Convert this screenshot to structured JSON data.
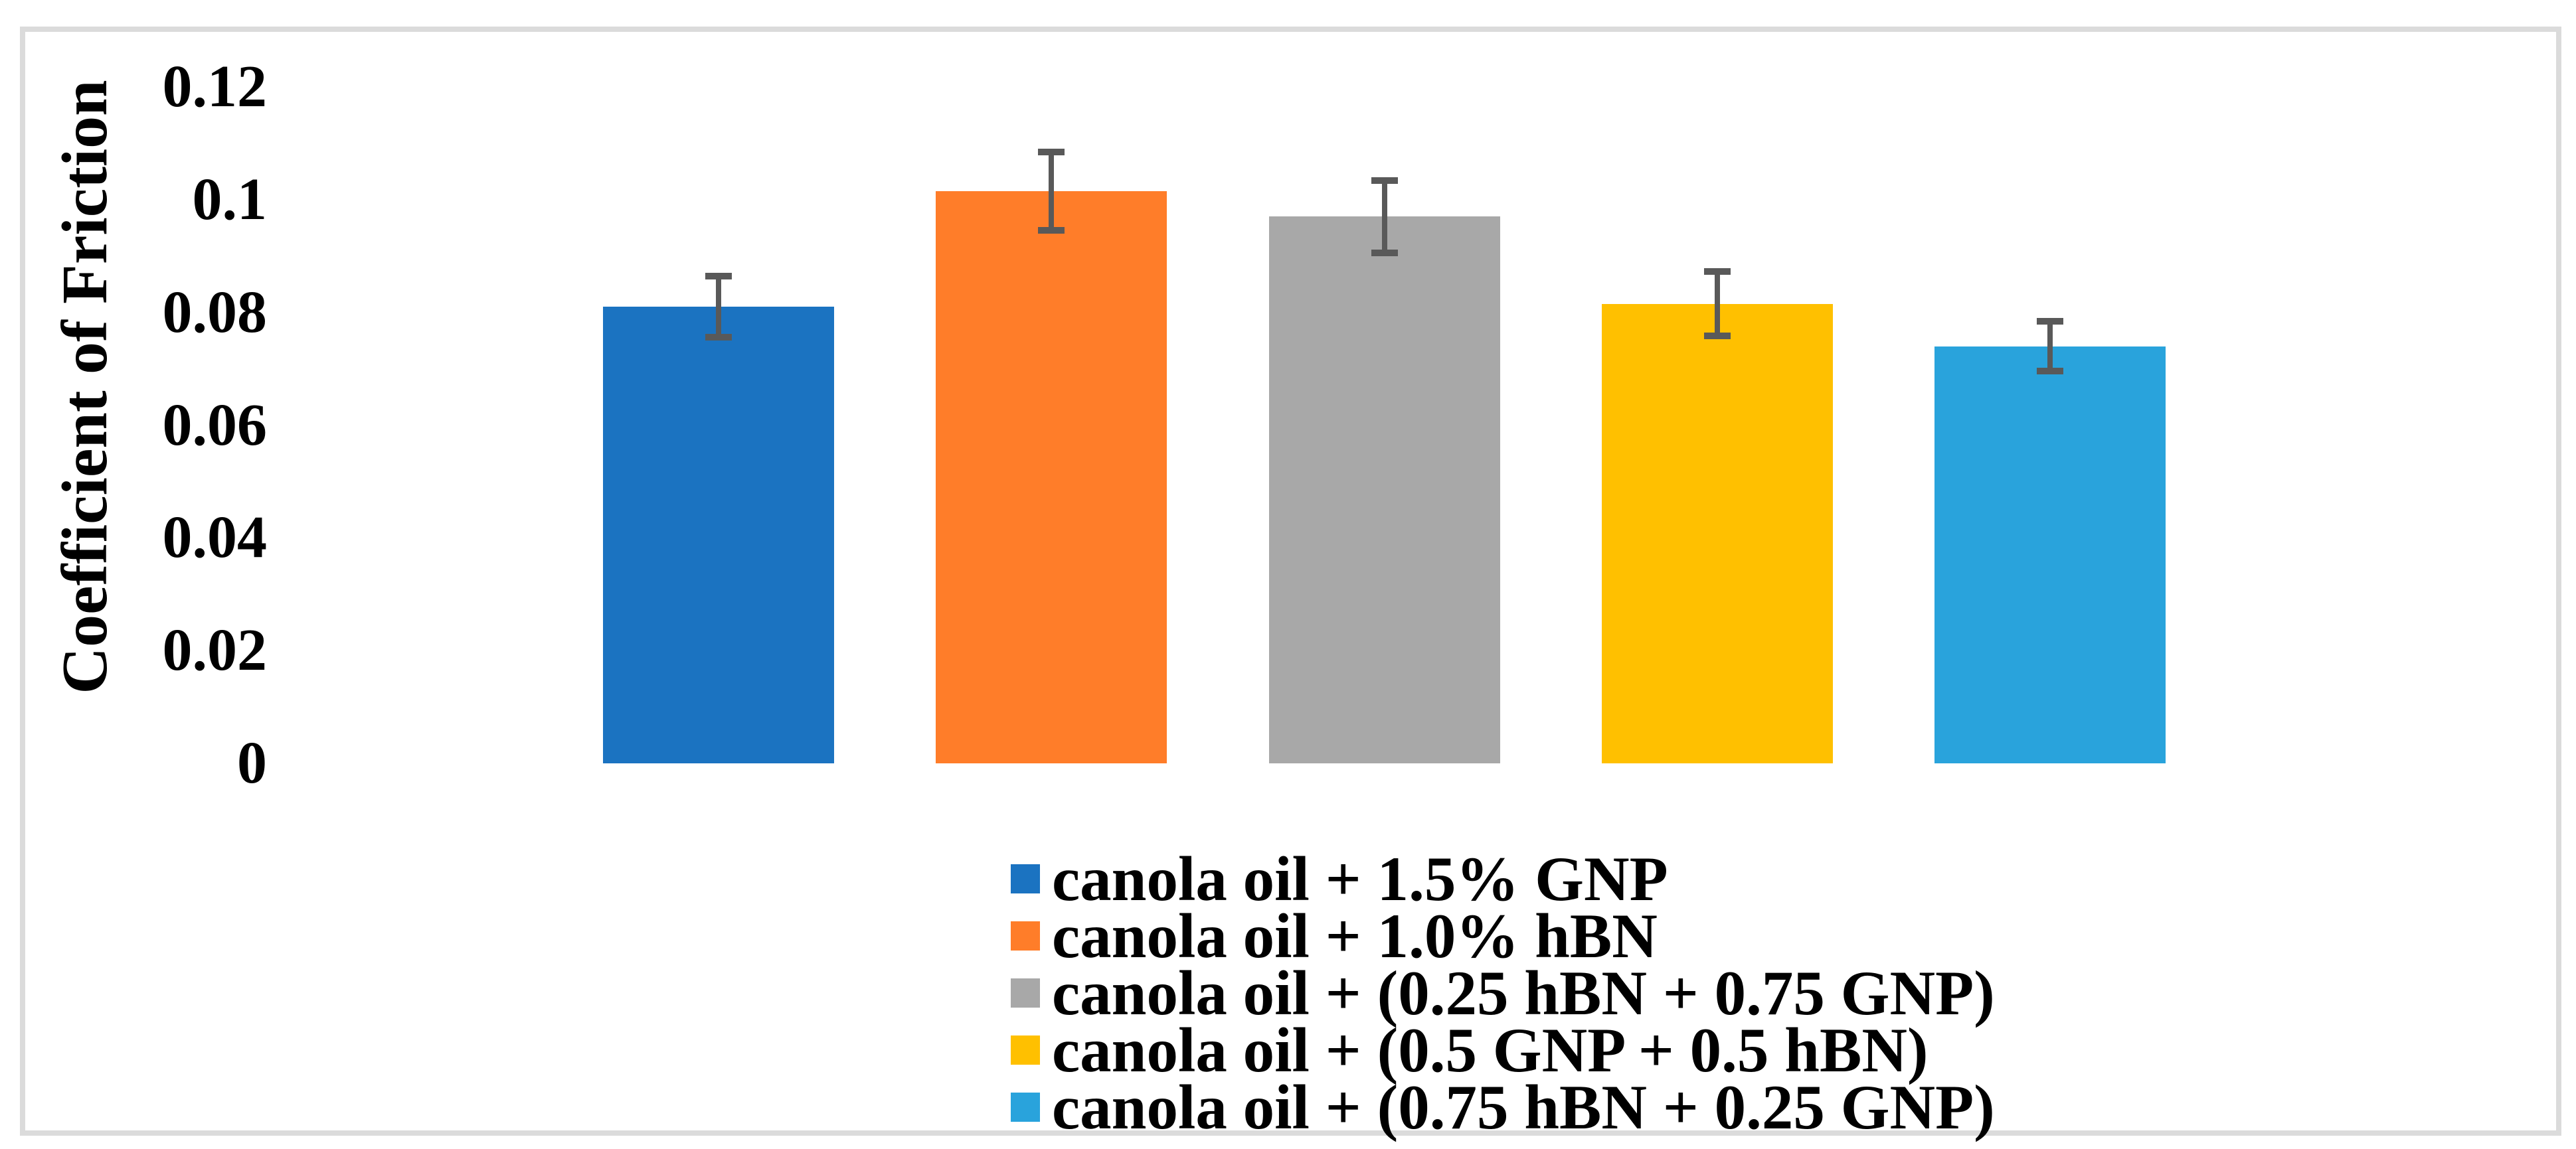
{
  "figure": {
    "background": "#FFFFFF",
    "border_color": "#DBDBDB"
  },
  "chart_data": {
    "type": "bar",
    "title": "",
    "xlabel": "",
    "ylabel": "Coefficient of Friction",
    "ylim": [
      0,
      0.12
    ],
    "grid": false,
    "legend_position": "bottom",
    "error_bars": true,
    "error_color": "#595959",
    "yticks": [
      {
        "value": 0.12,
        "label": "0.12"
      },
      {
        "value": 0.1,
        "label": "0.1"
      },
      {
        "value": 0.08,
        "label": "0.08"
      },
      {
        "value": 0.06,
        "label": "0.06"
      },
      {
        "value": 0.04,
        "label": "0.04"
      },
      {
        "value": 0.02,
        "label": "0.02"
      },
      {
        "value": 0.0,
        "label": "0"
      }
    ],
    "categories": [
      "canola oil + 1.5% GNP",
      "canola oil + 1.0% hBN",
      "canola oil + (0.25 hBN + 0.75 GNP)",
      "canola oil + (0.5 GNP + 0.5 hBN)",
      "canola oil + (0.75 hBN + 0.25 GNP)"
    ],
    "series": [
      {
        "label": "canola oil + 1.5% GNP",
        "value": 0.081,
        "error": 0.006,
        "color": "#1B73C1"
      },
      {
        "label": "canola oil + 1.0% hBN",
        "value": 0.1015,
        "error": 0.0075,
        "color": "#FF7D29"
      },
      {
        "label": "canola oil + (0.25 hBN + 0.75 GNP)",
        "value": 0.097,
        "error": 0.007,
        "color": "#A8A8A8"
      },
      {
        "label": "canola oil + (0.5 GNP + 0.5 hBN)",
        "value": 0.0815,
        "error": 0.0063,
        "color": "#FFC000"
      },
      {
        "label": "canola oil + (0.75 hBN + 0.25 GNP)",
        "value": 0.074,
        "error": 0.005,
        "color": "#29A3DC"
      }
    ]
  }
}
